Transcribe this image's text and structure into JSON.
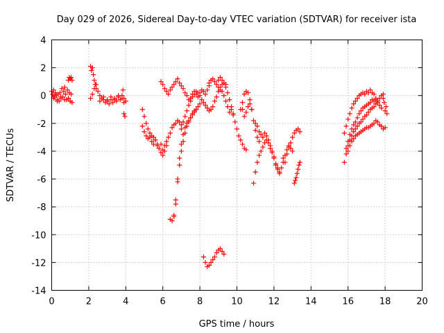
{
  "chart_data": {
    "type": "scatter",
    "title": "Day 029 of 2026, Sidereal Day-to-day VTEC variation (SDTVAR) for receiver ista",
    "xlabel": "GPS time / hours",
    "ylabel": "SDTVAR / TECUs",
    "xlim": [
      0,
      20
    ],
    "ylim": [
      -14,
      4
    ],
    "xticks": [
      0,
      2,
      4,
      6,
      8,
      10,
      12,
      14,
      16,
      18,
      20
    ],
    "xtick_labels": [
      "0",
      "2",
      "4",
      "6",
      "8",
      "10",
      "12",
      "14",
      "16",
      "18",
      "20"
    ],
    "yticks": [
      4,
      2,
      0,
      -2,
      -4,
      -6,
      -8,
      -10,
      -12,
      -14
    ],
    "ytick_labels": [
      "4",
      "2",
      "0",
      "-2",
      "-4",
      "-6",
      "-8",
      "-10",
      "-12",
      "-14"
    ],
    "grid": true,
    "marker": "+",
    "series_color": "#ff0000",
    "series": [
      {
        "name": "seg-00-01h",
        "x": [
          0.0,
          0.05,
          0.1,
          0.15,
          0.2,
          0.25,
          0.3,
          0.35,
          0.4,
          0.45,
          0.5,
          0.55,
          0.6,
          0.65,
          0.7,
          0.75,
          0.8,
          0.85,
          0.9,
          0.95,
          1.0,
          1.05,
          1.1
        ],
        "y": [
          0.3,
          0.1,
          0.4,
          -0.1,
          0.2,
          0.0,
          -0.3,
          0.1,
          -0.4,
          0.2,
          -0.2,
          0.5,
          -0.1,
          0.3,
          0.6,
          0.1,
          -0.3,
          0.4,
          -0.2,
          0.2,
          -0.4,
          0.1,
          -0.5
        ]
      },
      {
        "name": "seg-00-01h-b",
        "x": [
          0.1,
          0.3,
          0.5,
          0.7,
          0.9,
          1.0
        ],
        "y": [
          -0.2,
          -0.4,
          -0.1,
          -0.3,
          -0.2,
          -0.4
        ]
      },
      {
        "name": "seg-1h-spike",
        "x": [
          0.9,
          0.95,
          1.0,
          1.05,
          1.1
        ],
        "y": [
          1.1,
          1.3,
          1.2,
          1.3,
          1.1
        ]
      },
      {
        "name": "seg-2-4h",
        "x": [
          2.1,
          2.15,
          2.2,
          2.25,
          2.3,
          2.35,
          2.4,
          2.5,
          2.6,
          2.7,
          2.8,
          2.9,
          3.0,
          3.1,
          3.2,
          3.3,
          3.4,
          3.5,
          3.6,
          3.7,
          3.8,
          3.9,
          4.0
        ],
        "y": [
          2.1,
          1.8,
          2.0,
          1.5,
          1.1,
          0.8,
          0.5,
          0.3,
          0.0,
          -0.2,
          -0.3,
          -0.5,
          -0.4,
          -0.6,
          -0.3,
          -0.5,
          -0.2,
          -0.4,
          -0.1,
          -0.3,
          0.0,
          -0.2,
          -0.4
        ]
      },
      {
        "name": "seg-2-4h-b",
        "x": [
          2.1,
          2.2,
          2.3,
          2.4,
          2.6,
          2.8,
          3.0,
          3.2,
          3.4,
          3.6,
          3.8,
          3.9
        ],
        "y": [
          -0.2,
          0.1,
          0.5,
          0.8,
          -0.4,
          -0.1,
          -0.3,
          -0.1,
          -0.3,
          0.0,
          -0.2,
          -0.5
        ]
      },
      {
        "name": "seg-4h-tail",
        "x": [
          3.85,
          3.9,
          3.95
        ],
        "y": [
          0.4,
          -1.3,
          -1.5
        ]
      },
      {
        "name": "seg-5-7h",
        "x": [
          4.9,
          5.0,
          5.1,
          5.2,
          5.3,
          5.4,
          5.5,
          5.6,
          5.7,
          5.8,
          5.9,
          6.0,
          6.1,
          6.2,
          6.3,
          6.4,
          6.5,
          6.6,
          6.7,
          6.8,
          6.9,
          7.0
        ],
        "y": [
          -1.0,
          -1.5,
          -2.0,
          -2.4,
          -2.7,
          -2.9,
          -3.0,
          -3.2,
          -3.5,
          -3.8,
          -4.1,
          -4.3,
          -4.0,
          -3.6,
          -3.0,
          -2.7,
          -2.3,
          -2.1,
          -2.0,
          -1.8,
          -1.9,
          -2.1
        ]
      },
      {
        "name": "seg-5-7h-b",
        "x": [
          4.9,
          5.0,
          5.1,
          5.2,
          5.3,
          5.4,
          5.5,
          5.6,
          5.7,
          5.8,
          5.9,
          6.0,
          6.1,
          6.2
        ],
        "y": [
          -2.2,
          -2.6,
          -2.9,
          -3.1,
          -3.0,
          -3.3,
          -3.5,
          -3.2,
          -3.6,
          -3.8,
          -3.5,
          -3.9,
          -3.6,
          -3.3
        ]
      },
      {
        "name": "seg-6-8h-dip",
        "x": [
          6.4,
          6.5,
          6.6,
          6.7,
          6.8,
          6.9,
          7.0,
          7.1,
          7.2,
          7.3,
          7.4,
          7.5,
          7.6,
          7.7,
          7.8
        ],
        "y": [
          -8.9,
          -9.0,
          -8.6,
          -7.5,
          -6.0,
          -4.5,
          -3.5,
          -2.8,
          -2.3,
          -2.0,
          -1.8,
          -1.6,
          -1.3,
          -1.2,
          -1.0
        ]
      },
      {
        "name": "seg-6-8h-dip-b",
        "x": [
          6.6,
          6.7,
          6.8,
          6.9,
          7.0,
          7.1,
          7.2,
          7.3,
          7.4,
          7.5,
          7.6,
          7.7,
          7.8,
          7.9,
          8.0
        ],
        "y": [
          -8.7,
          -7.8,
          -6.2,
          -5.0,
          -4.0,
          -3.3,
          -2.7,
          -2.2,
          -1.9,
          -1.6,
          -1.4,
          -1.1,
          -1.0,
          -0.8,
          -0.6
        ]
      },
      {
        "name": "seg-6-9h-arc",
        "x": [
          5.9,
          6.0,
          6.1,
          6.2,
          6.3,
          6.4,
          6.5,
          6.6,
          6.7,
          6.8,
          6.9,
          7.0,
          7.1,
          7.2,
          7.3,
          7.4,
          7.5,
          7.6,
          7.7,
          7.8,
          7.9,
          8.0,
          8.1,
          8.2,
          8.3,
          8.4,
          8.5
        ],
        "y": [
          1.0,
          0.8,
          0.5,
          0.3,
          0.1,
          0.4,
          0.6,
          0.8,
          1.0,
          1.2,
          0.9,
          0.7,
          0.5,
          0.2,
          0.0,
          -0.3,
          -0.2,
          0.1,
          0.3,
          0.1,
          -0.1,
          0.2,
          0.4,
          0.3,
          0.1,
          0.4,
          0.7
        ]
      },
      {
        "name": "seg-7-9h-mid",
        "x": [
          7.0,
          7.1,
          7.2,
          7.3,
          7.4,
          7.5,
          7.6,
          7.7,
          7.8,
          7.9,
          8.0,
          8.1,
          8.2,
          8.3,
          8.4,
          8.5,
          8.6,
          8.7,
          8.8,
          8.9,
          9.0,
          9.1,
          9.2,
          9.3,
          9.4
        ],
        "y": [
          -2.4,
          -1.9,
          -1.5,
          -1.1,
          -0.7,
          -0.4,
          -0.1,
          0.1,
          0.3,
          0.2,
          0.0,
          -0.3,
          -0.5,
          -0.7,
          -0.9,
          -1.1,
          -1.0,
          -0.8,
          -0.4,
          -0.1,
          0.3,
          0.6,
          0.8,
          0.9,
          0.8
        ]
      },
      {
        "name": "seg-8-9h-low",
        "x": [
          8.2,
          8.3,
          8.4,
          8.5,
          8.6,
          8.7,
          8.8,
          8.9,
          9.0,
          9.1,
          9.2,
          9.3
        ],
        "y": [
          -11.6,
          -12.0,
          -12.3,
          -12.2,
          -12.0,
          -11.8,
          -11.6,
          -11.3,
          -11.1,
          -11.0,
          -11.2,
          -11.4
        ]
      },
      {
        "name": "seg-8-11h",
        "x": [
          8.5,
          8.6,
          8.7,
          8.8,
          8.9,
          9.0,
          9.1,
          9.2,
          9.3,
          9.4,
          9.5,
          9.6,
          9.7,
          9.8,
          9.9,
          10.0,
          10.1,
          10.2,
          10.3,
          10.4,
          10.5
        ],
        "y": [
          0.9,
          1.1,
          1.2,
          1.0,
          0.8,
          1.1,
          1.3,
          1.1,
          0.9,
          0.6,
          0.2,
          -0.3,
          -0.8,
          -1.3,
          -1.9,
          -2.4,
          -2.9,
          -3.2,
          -3.5,
          -3.8,
          -3.9
        ]
      },
      {
        "name": "seg-9-10h-b",
        "x": [
          9.0,
          9.1,
          9.2,
          9.3,
          9.4,
          9.5,
          9.6,
          9.7,
          9.8
        ],
        "y": [
          0.6,
          0.4,
          0.3,
          0.0,
          -0.4,
          -0.8,
          -1.2,
          -1.0,
          -1.4
        ]
      },
      {
        "name": "seg-10-11h",
        "x": [
          10.2,
          10.3,
          10.4,
          10.5,
          10.6,
          10.7,
          10.8,
          10.9,
          11.0,
          11.1,
          11.2
        ],
        "y": [
          -1.0,
          -0.5,
          0.1,
          0.3,
          0.2,
          -0.3,
          -1.0,
          -1.8,
          -2.5,
          -3.0,
          -3.3
        ]
      },
      {
        "name": "seg-10-11h-c",
        "x": [
          10.3,
          10.4,
          10.5,
          10.6,
          10.7,
          10.8
        ],
        "y": [
          -1.0,
          -1.5,
          -1.2,
          -0.8,
          -0.6,
          -1.0
        ]
      },
      {
        "name": "seg-11-12h",
        "x": [
          11.0,
          11.1,
          11.2,
          11.3,
          11.4,
          11.5,
          11.6,
          11.7,
          11.8,
          11.9,
          12.0,
          12.1,
          12.2,
          12.3,
          12.4,
          12.5,
          12.6,
          12.7,
          12.8,
          12.9,
          13.0
        ],
        "y": [
          -2.0,
          -2.2,
          -2.6,
          -2.8,
          -3.0,
          -2.7,
          -2.9,
          -3.2,
          -3.6,
          -4.0,
          -4.5,
          -5.0,
          -5.3,
          -5.5,
          -5.2,
          -4.8,
          -4.3,
          -3.9,
          -3.6,
          -3.8,
          -4.0
        ]
      },
      {
        "name": "seg-11-12h-low",
        "x": [
          10.9,
          11.0,
          11.1,
          11.2,
          11.3,
          11.4,
          11.5,
          11.6,
          11.7,
          11.8,
          11.9,
          12.0,
          12.1,
          12.2,
          12.3
        ],
        "y": [
          -6.3,
          -5.5,
          -4.8,
          -4.3,
          -4.0,
          -3.7,
          -3.4,
          -3.2,
          -3.4,
          -3.8,
          -4.1,
          -4.4,
          -4.9,
          -5.2,
          -5.6
        ]
      },
      {
        "name": "seg-12-13h",
        "x": [
          12.5,
          12.6,
          12.7,
          12.8,
          12.9,
          13.0,
          13.1,
          13.2,
          13.3,
          13.4
        ],
        "y": [
          -4.5,
          -4.8,
          -4.2,
          -3.7,
          -3.4,
          -3.0,
          -2.7,
          -2.5,
          -2.4,
          -2.6
        ]
      },
      {
        "name": "seg-13h-tail",
        "x": [
          13.1,
          13.15,
          13.2,
          13.25,
          13.3,
          13.35,
          13.4
        ],
        "y": [
          -6.3,
          -6.1,
          -5.9,
          -5.6,
          -5.3,
          -5.0,
          -4.8
        ]
      },
      {
        "name": "seg-15-18h-a",
        "x": [
          15.8,
          15.9,
          16.0,
          16.1,
          16.2,
          16.3,
          16.4,
          16.5,
          16.6,
          16.7,
          16.8,
          16.9,
          17.0,
          17.1,
          17.2,
          17.3,
          17.4,
          17.5
        ],
        "y": [
          -2.7,
          -2.2,
          -1.7,
          -1.3,
          -0.9,
          -0.6,
          -0.4,
          -0.2,
          0.0,
          0.1,
          0.2,
          0.1,
          0.3,
          0.2,
          0.4,
          0.2,
          0.1,
          -0.2
        ]
      },
      {
        "name": "seg-15-18h-b",
        "x": [
          15.9,
          16.0,
          16.1,
          16.2,
          16.3,
          16.4,
          16.5,
          16.6,
          16.7,
          16.8,
          16.9,
          17.0,
          17.1,
          17.2,
          17.3,
          17.4,
          17.5,
          17.6,
          17.7,
          17.8,
          17.9
        ],
        "y": [
          -3.8,
          -3.3,
          -2.8,
          -2.4,
          -2.1,
          -1.9,
          -1.6,
          -1.3,
          -1.1,
          -0.9,
          -0.8,
          -0.7,
          -0.6,
          -0.5,
          -0.3,
          -0.4,
          -0.3,
          -0.4,
          -0.2,
          0.0,
          -0.2
        ]
      },
      {
        "name": "seg-15-18h-c",
        "x": [
          15.8,
          15.9,
          16.0,
          16.1,
          16.2,
          16.3,
          16.4,
          16.5,
          16.6,
          16.7,
          16.8,
          16.9,
          17.0,
          17.1,
          17.2,
          17.3,
          17.4,
          17.5,
          17.6,
          17.7,
          17.8
        ],
        "y": [
          -4.8,
          -4.2,
          -3.6,
          -3.2,
          -2.9,
          -2.6,
          -2.4,
          -2.2,
          -2.0,
          -1.9,
          -1.7,
          -1.5,
          -1.4,
          -1.2,
          -1.0,
          -0.9,
          -0.8,
          -0.6,
          -0.5,
          -0.7,
          -0.9
        ]
      },
      {
        "name": "seg-15-18h-d",
        "x": [
          16.0,
          16.1,
          16.2,
          16.3,
          16.4,
          16.5,
          16.6,
          16.7,
          16.8,
          16.9,
          17.0,
          17.1,
          17.2,
          17.3,
          17.4,
          17.5,
          17.6,
          17.7,
          17.8,
          17.9,
          18.0
        ],
        "y": [
          -4.0,
          -3.6,
          -3.3,
          -3.1,
          -2.9,
          -2.8,
          -2.7,
          -2.6,
          -2.5,
          -2.4,
          -2.3,
          -2.3,
          -2.2,
          -2.1,
          -2.0,
          -1.8,
          -1.9,
          -2.1,
          -2.2,
          -2.4,
          -2.3
        ]
      },
      {
        "name": "seg-18h-tail",
        "x": [
          17.9,
          17.95,
          18.0,
          18.05,
          18.1
        ],
        "y": [
          0.1,
          -0.5,
          -1.1,
          -0.8,
          -1.3
        ]
      }
    ]
  }
}
